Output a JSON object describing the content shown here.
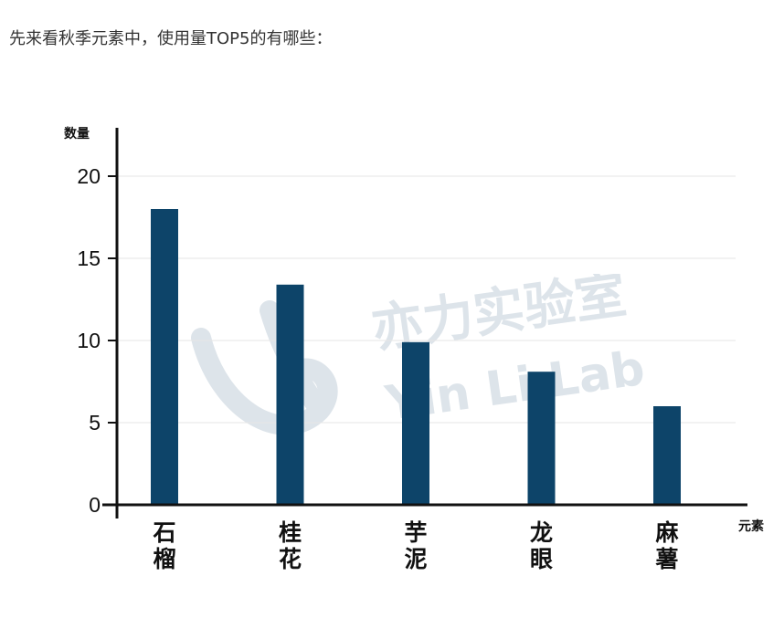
{
  "intro_text": "先来看秋季元素中，使用量TOP5的有哪些：",
  "watermark": {
    "line1": "亦力实验室",
    "line2": "Yin Li Lab"
  },
  "colors": {
    "bar": "#0d4469",
    "axis": "#111111",
    "grid": "#e6e6e6",
    "watermark": "#dde4ea"
  },
  "chart_data": {
    "type": "bar",
    "title": "",
    "ylabel": "数量",
    "xlabel": "元素",
    "categories": [
      "石榴",
      "桂花",
      "芋泥",
      "龙眼",
      "麻薯"
    ],
    "values": [
      18,
      13.4,
      9.9,
      8.1,
      6
    ],
    "yticks": [
      0,
      5,
      10,
      15,
      20
    ],
    "ylim": [
      0,
      20
    ],
    "grid": true,
    "legend": false
  }
}
